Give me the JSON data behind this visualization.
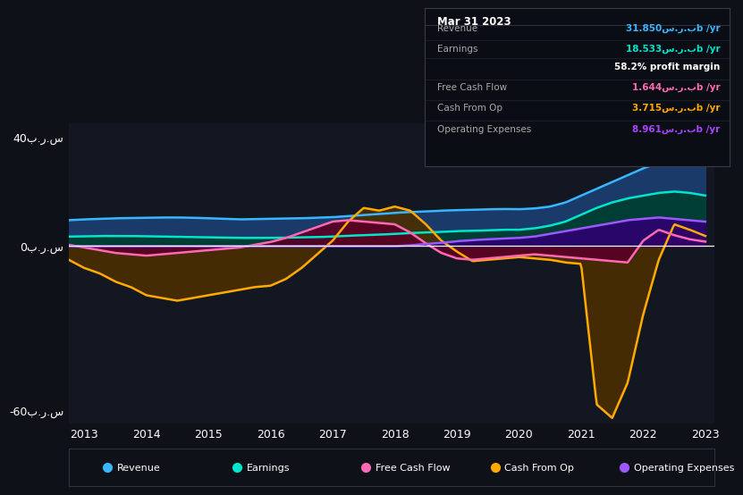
{
  "background_color": "#0e1117",
  "plot_bg": "#131722",
  "ylabel_pos": "40ب.ر.س",
  "ylabel_neg": "-60ب.ر.س",
  "ylabel_zero": "0ب.ر.س",
  "x_ticks": [
    2013,
    2014,
    2015,
    2016,
    2017,
    2018,
    2019,
    2020,
    2021,
    2022,
    2023
  ],
  "ylim": [
    -65,
    45
  ],
  "tooltip_date": "Mar 31 2023",
  "tooltip_rows": [
    {
      "label": "Revenue",
      "value": "31.850س.ر.بb /yr",
      "color": "#38b6ff"
    },
    {
      "label": "Earnings",
      "value": "18.533س.ر.بb /yr",
      "color": "#00e5cc"
    },
    {
      "label": "",
      "value": "58.2% profit margin",
      "color": "#ffffff"
    },
    {
      "label": "Free Cash Flow",
      "value": "1.644س.ر.بb /yr",
      "color": "#ff69b4"
    },
    {
      "label": "Cash From Op",
      "value": "3.715س.ر.بb /yr",
      "color": "#ffaa00"
    },
    {
      "label": "Operating Expenses",
      "value": "8.961س.ر.بb /yr",
      "color": "#aa44ff"
    }
  ],
  "series": {
    "Revenue": {
      "color": "#38b6ff",
      "fill": "#1a3a6a",
      "t": [
        2012.75,
        2013.0,
        2013.25,
        2013.5,
        2013.75,
        2014.0,
        2014.25,
        2014.5,
        2014.75,
        2015.0,
        2015.25,
        2015.5,
        2015.75,
        2016.0,
        2016.25,
        2016.5,
        2016.75,
        2017.0,
        2017.25,
        2017.5,
        2017.75,
        2018.0,
        2018.25,
        2018.5,
        2018.75,
        2019.0,
        2019.25,
        2019.5,
        2019.75,
        2020.0,
        2020.25,
        2020.5,
        2020.75,
        2021.0,
        2021.25,
        2021.5,
        2021.75,
        2022.0,
        2022.25,
        2022.5,
        2022.75,
        2023.0
      ],
      "v": [
        9.5,
        9.8,
        10.0,
        10.2,
        10.3,
        10.4,
        10.5,
        10.5,
        10.4,
        10.2,
        10.0,
        9.8,
        9.9,
        10.0,
        10.1,
        10.2,
        10.4,
        10.6,
        11.0,
        11.4,
        11.8,
        12.2,
        12.5,
        12.7,
        13.0,
        13.2,
        13.3,
        13.5,
        13.6,
        13.5,
        13.8,
        14.5,
        16.0,
        18.5,
        21.0,
        23.5,
        26.0,
        28.5,
        30.5,
        31.5,
        31.9,
        31.85
      ]
    },
    "Earnings": {
      "color": "#00e5cc",
      "fill": "#003d35",
      "t": [
        2012.75,
        2013.0,
        2013.25,
        2013.5,
        2013.75,
        2014.0,
        2014.25,
        2014.5,
        2014.75,
        2015.0,
        2015.25,
        2015.5,
        2015.75,
        2016.0,
        2016.25,
        2016.5,
        2016.75,
        2017.0,
        2017.25,
        2017.5,
        2017.75,
        2018.0,
        2018.25,
        2018.5,
        2018.75,
        2019.0,
        2019.25,
        2019.5,
        2019.75,
        2020.0,
        2020.25,
        2020.5,
        2020.75,
        2021.0,
        2021.25,
        2021.5,
        2021.75,
        2022.0,
        2022.25,
        2022.5,
        2022.75,
        2023.0
      ],
      "v": [
        3.5,
        3.6,
        3.7,
        3.7,
        3.7,
        3.6,
        3.5,
        3.4,
        3.3,
        3.2,
        3.1,
        3.0,
        3.0,
        3.0,
        3.1,
        3.2,
        3.3,
        3.5,
        3.8,
        4.0,
        4.2,
        4.5,
        4.8,
        5.0,
        5.2,
        5.5,
        5.6,
        5.8,
        6.0,
        6.0,
        6.5,
        7.5,
        9.0,
        11.5,
        14.0,
        16.0,
        17.5,
        18.5,
        19.5,
        20.0,
        19.5,
        18.533
      ]
    },
    "Free Cash Flow": {
      "color": "#ff69b4",
      "fill": "#5a0025",
      "t": [
        2012.75,
        2013.0,
        2013.25,
        2013.5,
        2013.75,
        2014.0,
        2014.25,
        2014.5,
        2014.75,
        2015.0,
        2015.25,
        2015.5,
        2015.75,
        2016.0,
        2016.25,
        2016.5,
        2016.75,
        2017.0,
        2017.25,
        2017.5,
        2017.75,
        2018.0,
        2018.25,
        2018.5,
        2018.75,
        2019.0,
        2019.25,
        2019.5,
        2019.75,
        2020.0,
        2020.25,
        2020.5,
        2020.75,
        2021.0,
        2021.25,
        2021.5,
        2021.75,
        2022.0,
        2022.25,
        2022.5,
        2022.75,
        2023.0
      ],
      "v": [
        0.5,
        -0.5,
        -1.5,
        -2.5,
        -3.0,
        -3.5,
        -3.0,
        -2.5,
        -2.0,
        -1.5,
        -1.0,
        -0.5,
        0.5,
        1.5,
        3.0,
        5.0,
        7.0,
        9.0,
        9.5,
        9.0,
        8.5,
        8.0,
        5.0,
        1.0,
        -2.5,
        -4.5,
        -5.0,
        -4.5,
        -4.0,
        -3.5,
        -3.0,
        -3.5,
        -4.0,
        -4.5,
        -5.0,
        -5.5,
        -6.0,
        2.0,
        6.0,
        4.0,
        2.5,
        1.644
      ]
    },
    "Cash From Op": {
      "color": "#ffaa00",
      "fill": "#4a2e00",
      "t": [
        2012.75,
        2013.0,
        2013.25,
        2013.5,
        2013.75,
        2014.0,
        2014.25,
        2014.5,
        2014.75,
        2015.0,
        2015.25,
        2015.5,
        2015.75,
        2016.0,
        2016.25,
        2016.5,
        2016.75,
        2017.0,
        2017.25,
        2017.5,
        2017.75,
        2018.0,
        2018.25,
        2018.5,
        2018.75,
        2019.0,
        2019.25,
        2019.5,
        2019.75,
        2020.0,
        2020.25,
        2020.5,
        2020.75,
        2021.0,
        2021.25,
        2021.5,
        2021.75,
        2022.0,
        2022.25,
        2022.5,
        2022.75,
        2023.0
      ],
      "v": [
        -5.0,
        -8.0,
        -10.0,
        -13.0,
        -15.0,
        -18.0,
        -19.0,
        -20.0,
        -19.0,
        -18.0,
        -17.0,
        -16.0,
        -15.0,
        -14.5,
        -12.0,
        -8.0,
        -3.0,
        2.0,
        9.0,
        14.0,
        13.0,
        14.5,
        13.0,
        8.0,
        2.0,
        -2.0,
        -5.5,
        -5.0,
        -4.5,
        -4.0,
        -4.5,
        -5.0,
        -6.0,
        -6.5,
        -58.0,
        -63.0,
        -50.0,
        -25.0,
        -5.0,
        8.0,
        6.0,
        3.715
      ]
    },
    "Operating Expenses": {
      "color": "#9b59ff",
      "fill": "#2d0070",
      "t": [
        2012.75,
        2013.0,
        2013.5,
        2014.0,
        2014.5,
        2015.0,
        2015.5,
        2016.0,
        2016.5,
        2017.0,
        2017.5,
        2018.0,
        2018.25,
        2018.5,
        2018.75,
        2019.0,
        2019.25,
        2019.5,
        2019.75,
        2020.0,
        2020.25,
        2020.5,
        2020.75,
        2021.0,
        2021.25,
        2021.5,
        2021.75,
        2022.0,
        2022.25,
        2022.5,
        2022.75,
        2023.0
      ],
      "v": [
        0.0,
        0.0,
        0.0,
        0.0,
        0.0,
        0.0,
        0.0,
        0.0,
        0.0,
        0.0,
        0.0,
        0.0,
        0.3,
        0.8,
        1.2,
        1.8,
        2.2,
        2.5,
        2.8,
        3.0,
        3.5,
        4.5,
        5.5,
        6.5,
        7.5,
        8.5,
        9.5,
        10.0,
        10.5,
        10.0,
        9.5,
        8.961
      ]
    }
  },
  "legend_items": [
    {
      "label": "Revenue",
      "color": "#38b6ff"
    },
    {
      "label": "Earnings",
      "color": "#00e5cc"
    },
    {
      "label": "Free Cash Flow",
      "color": "#ff69b4"
    },
    {
      "label": "Cash From Op",
      "color": "#ffaa00"
    },
    {
      "label": "Operating Expenses",
      "color": "#9b59ff"
    }
  ]
}
